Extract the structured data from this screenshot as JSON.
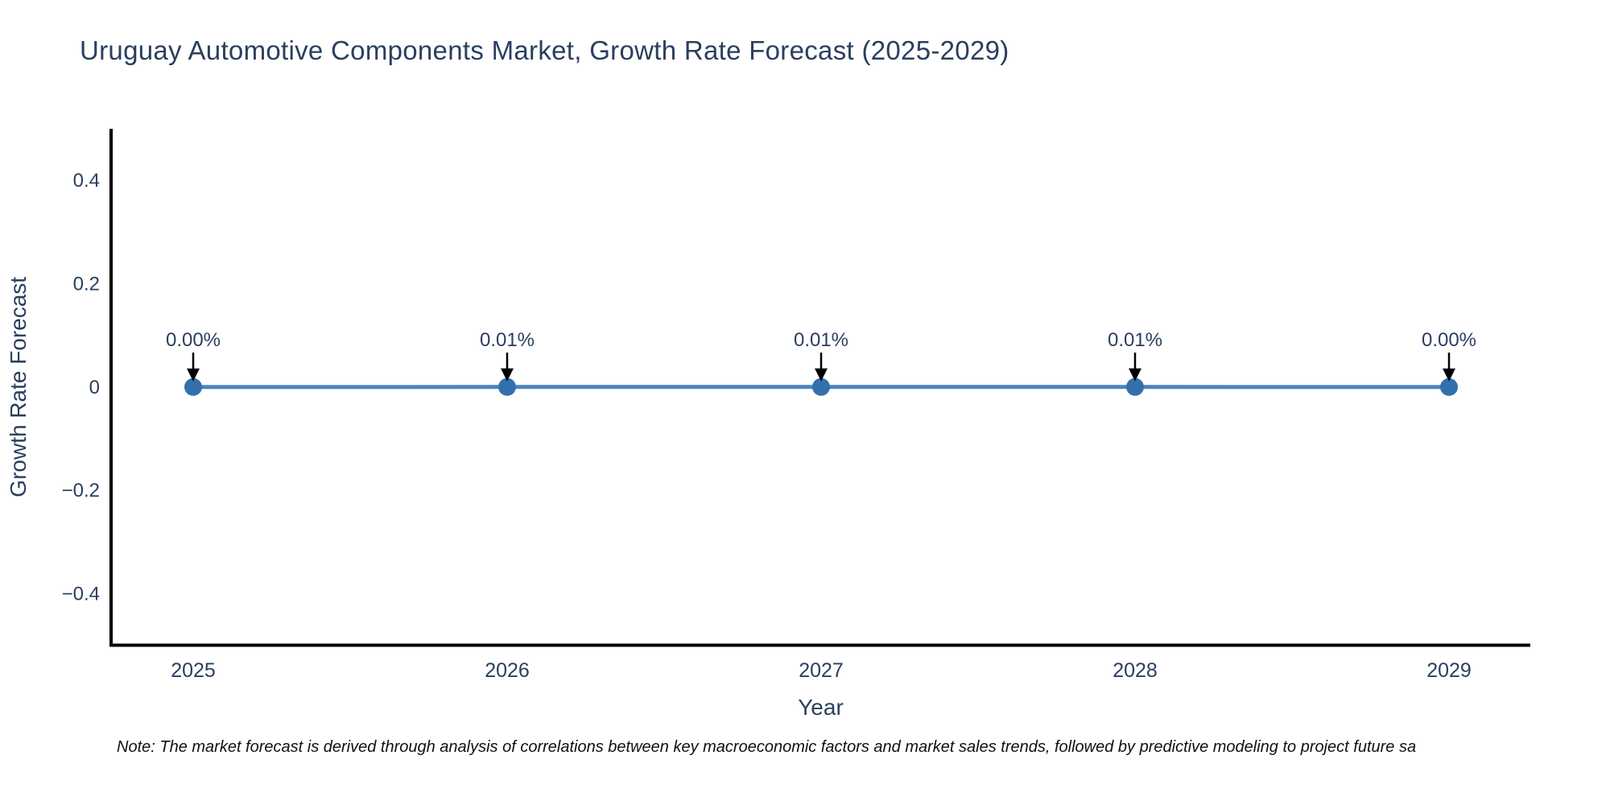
{
  "note": "Note: The market forecast is derived through analysis of correlations between key macroeconomic factors and market sales trends, followed by predictive modeling to project future sa",
  "chart_data": {
    "type": "line",
    "title": "Uruguay Automotive Components Market, Growth Rate Forecast (2025-2029)",
    "xlabel": "Year",
    "ylabel": "Growth Rate Forecast",
    "x": [
      2025,
      2026,
      2027,
      2028,
      2029
    ],
    "x_tick_labels": [
      "2025",
      "2026",
      "2027",
      "2028",
      "2029"
    ],
    "series": [
      {
        "name": "Growth Rate Forecast",
        "values": [
          0.0,
          0.0001,
          0.0001,
          0.0001,
          0.0
        ],
        "point_labels": [
          "0.00%",
          "0.01%",
          "0.01%",
          "0.01%",
          "0.00%"
        ]
      }
    ],
    "yticks": [
      0.4,
      0.2,
      0,
      -0.2,
      -0.4
    ],
    "y_tick_labels": [
      "0.4",
      "0.2",
      "0",
      "−0.2",
      "−0.4"
    ],
    "ylim": [
      -0.5,
      0.5
    ],
    "grid": false,
    "legend": false,
    "colors": {
      "line": "#4e86c0",
      "marker": "#3470ad",
      "axis": "#000000",
      "text": "#2a3f5f",
      "annotation_text": "#2a3f5f",
      "annotation_arrow": "#000000"
    }
  }
}
